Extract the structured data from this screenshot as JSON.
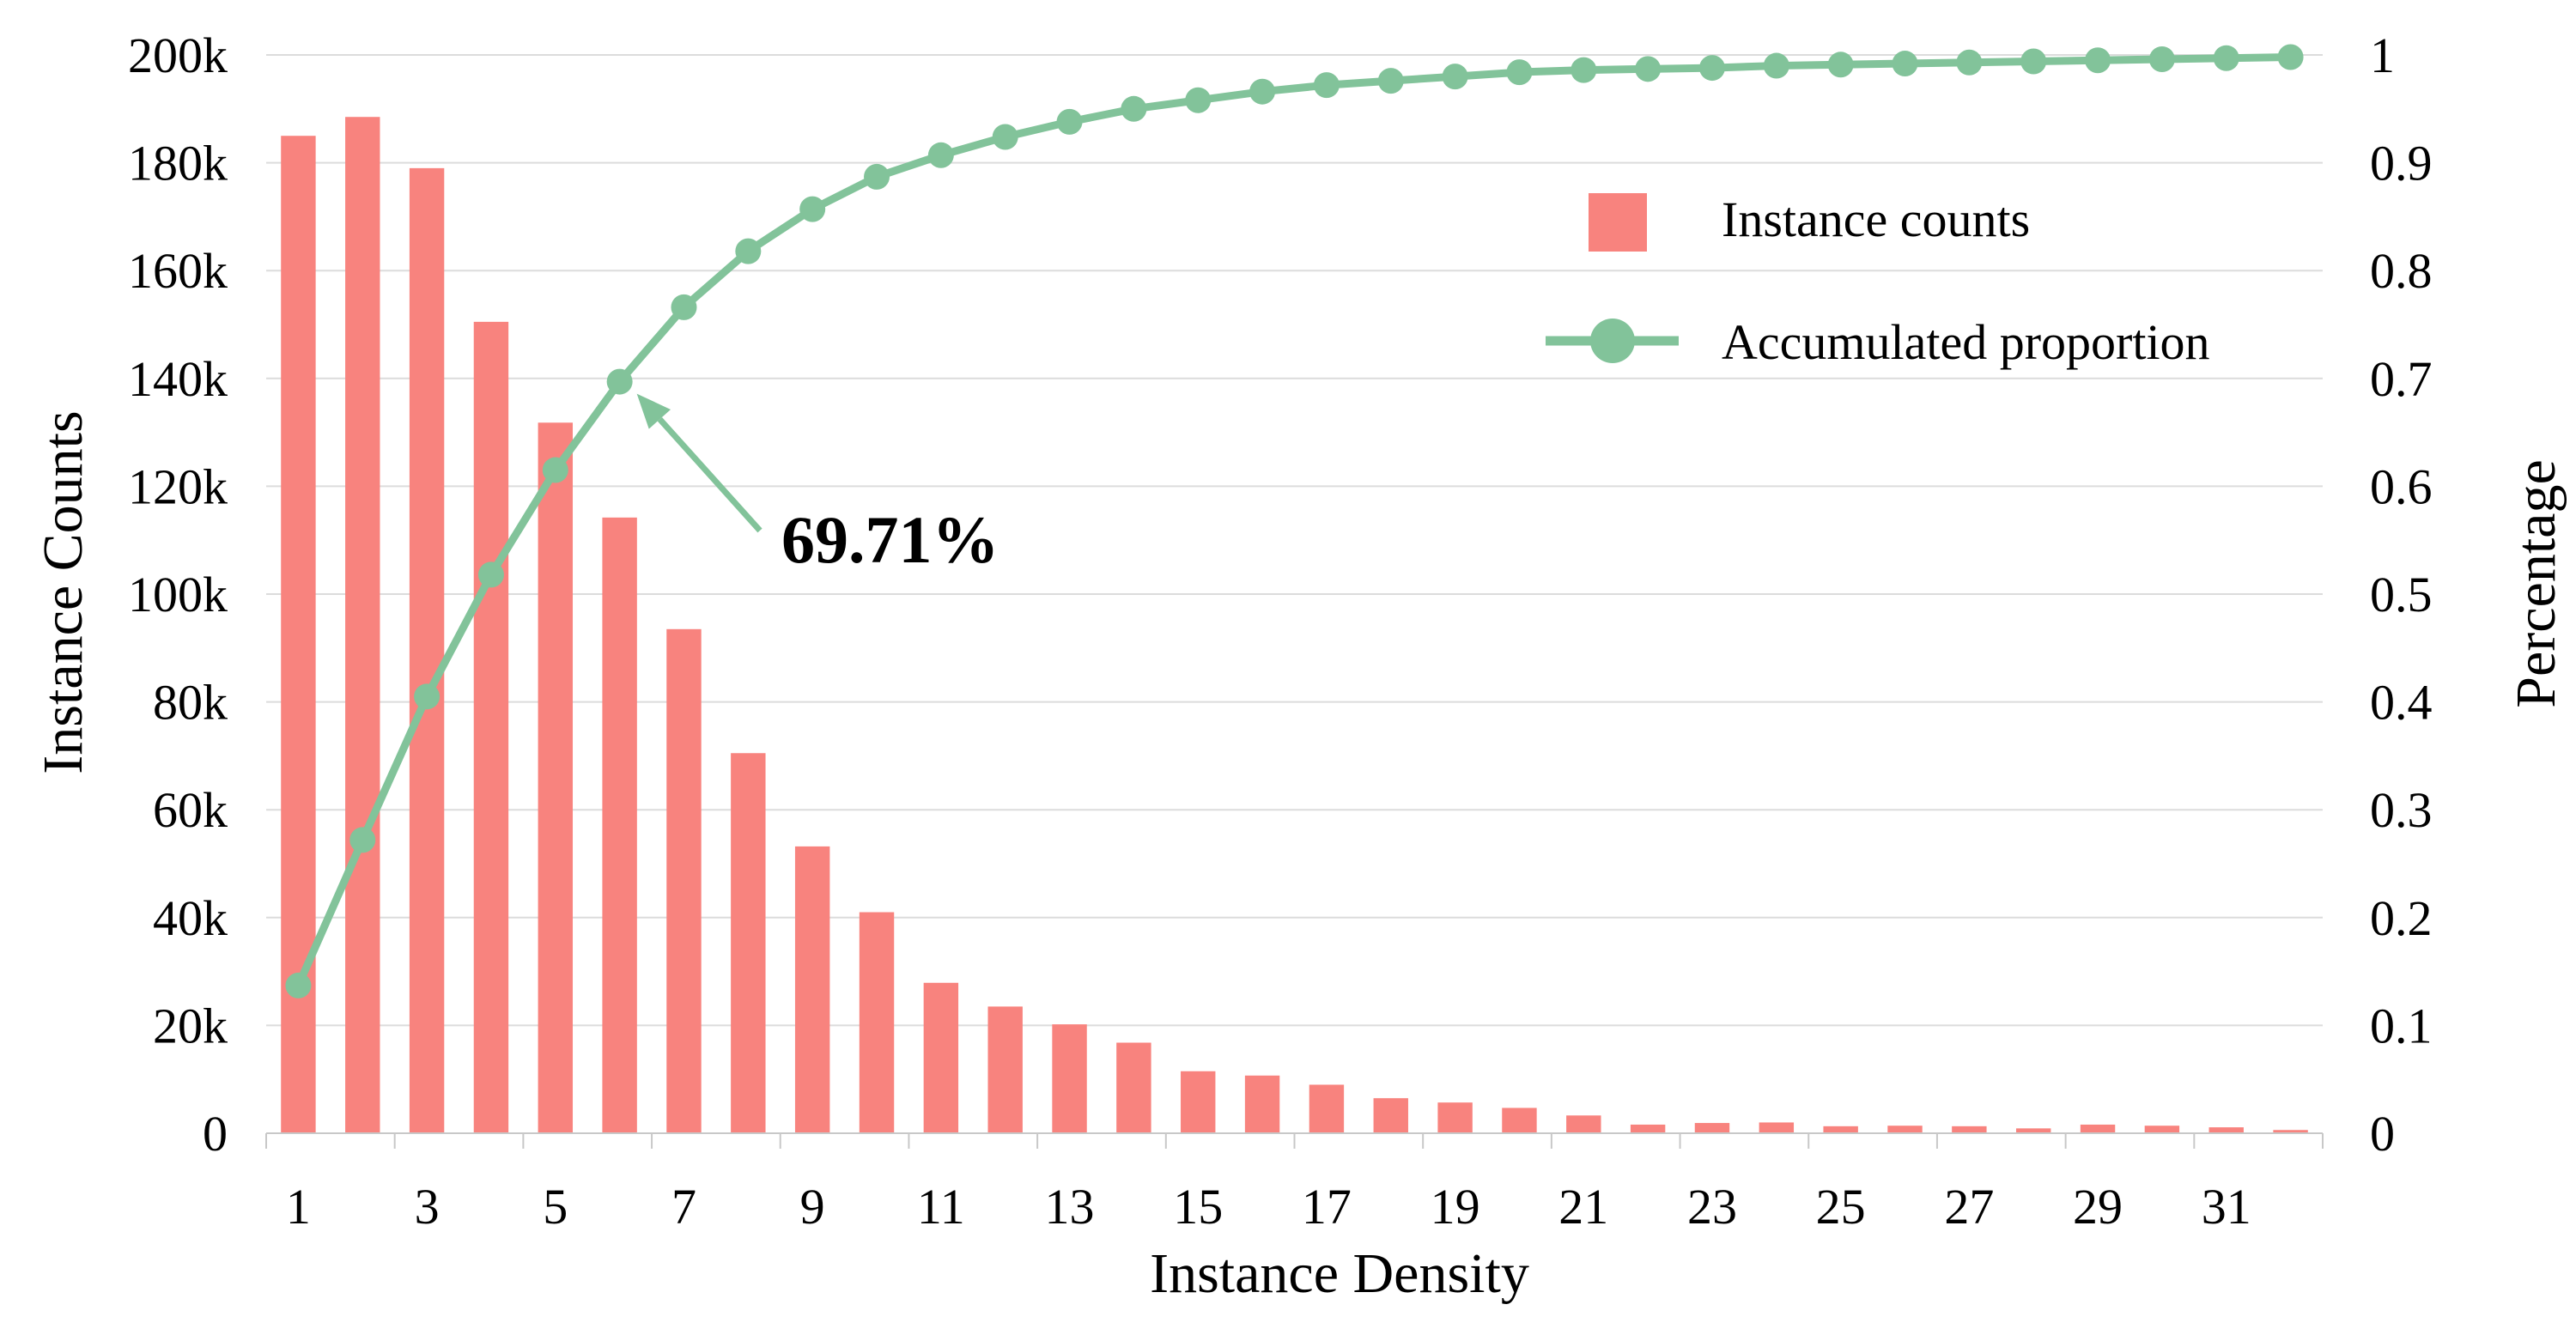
{
  "chart_data": {
    "type": "bar+line",
    "x": [
      1,
      2,
      3,
      4,
      5,
      6,
      7,
      8,
      9,
      10,
      11,
      12,
      13,
      14,
      15,
      16,
      17,
      18,
      19,
      20,
      21,
      22,
      23,
      24,
      25,
      26,
      27,
      28,
      29,
      30,
      31,
      32
    ],
    "x_tick_labels": [
      "1",
      "3",
      "5",
      "7",
      "9",
      "11",
      "13",
      "15",
      "17",
      "19",
      "21",
      "23",
      "25",
      "27",
      "29",
      "31"
    ],
    "xlabel": "Instance Density",
    "ylabel_left": "Instance Counts",
    "ylabel_right": "Percentage",
    "y_left_ticks": [
      "0",
      "20k",
      "40k",
      "60k",
      "80k",
      "100k",
      "120k",
      "140k",
      "160k",
      "180k",
      "200k"
    ],
    "y_left_range": [
      0,
      200000
    ],
    "y_right_ticks": [
      "0",
      "0.1",
      "0.2",
      "0.3",
      "0.4",
      "0.5",
      "0.6",
      "0.7",
      "0.8",
      "0.9",
      "1"
    ],
    "y_right_range": [
      0,
      1
    ],
    "grid": true,
    "legend_position": "top-right",
    "series": [
      {
        "name": "Instance counts",
        "kind": "bar",
        "axis": "left",
        "color": "#F8837E",
        "values": [
          185000,
          188500,
          179000,
          150500,
          131800,
          114200,
          93500,
          70500,
          53200,
          41000,
          27900,
          23500,
          20200,
          16800,
          11500,
          10700,
          9000,
          6500,
          5700,
          4700,
          3300,
          1600,
          1900,
          2000,
          1300,
          1400,
          1300,
          900,
          1600,
          1400,
          1100,
          600
        ]
      },
      {
        "name": "Accumulated proportion",
        "kind": "line",
        "axis": "right",
        "color": "#82C39A",
        "values": [
          0.137,
          0.272,
          0.405,
          0.518,
          0.615,
          0.697,
          0.766,
          0.818,
          0.857,
          0.887,
          0.907,
          0.924,
          0.938,
          0.95,
          0.958,
          0.966,
          0.972,
          0.976,
          0.98,
          0.984,
          0.986,
          0.987,
          0.988,
          0.99,
          0.991,
          0.992,
          0.993,
          0.994,
          0.995,
          0.996,
          0.997,
          0.998
        ]
      }
    ],
    "annotation": {
      "text": "69.71%",
      "target_index": 5
    }
  }
}
